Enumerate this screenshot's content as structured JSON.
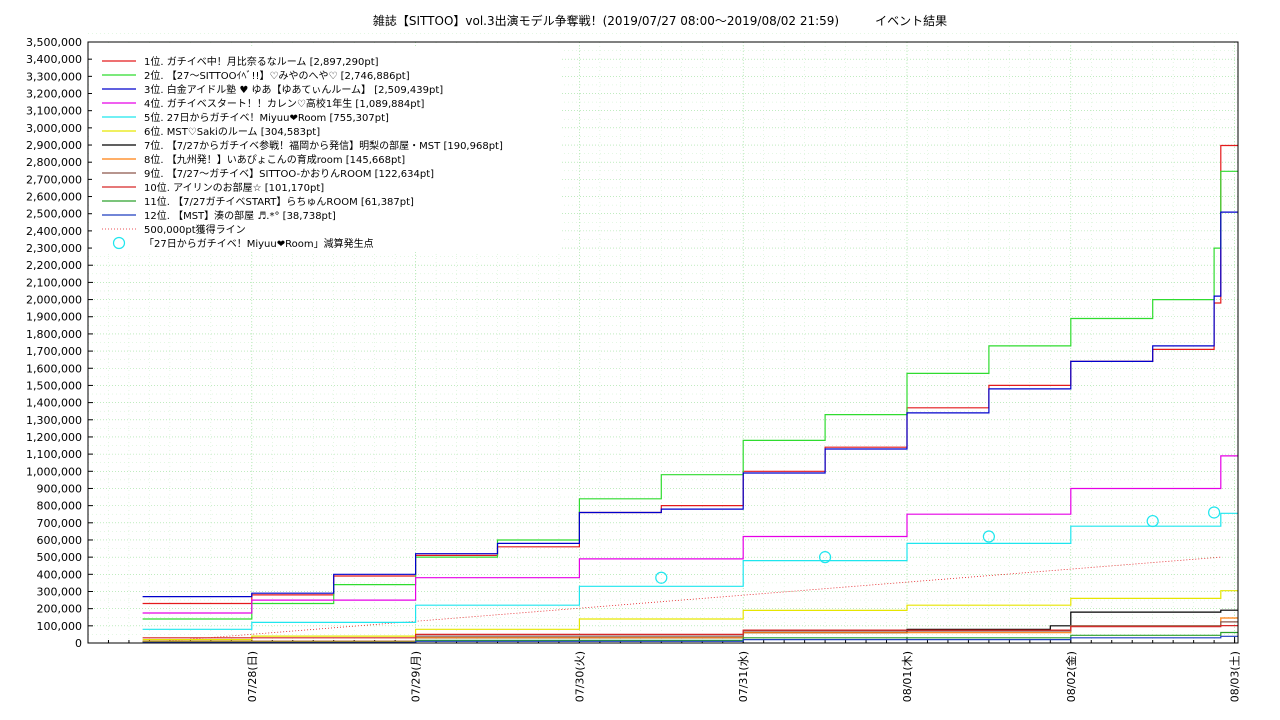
{
  "chart_data": {
    "type": "line",
    "title": "雑誌【SITTOO】vol.3出演モデル争奪戦！(2019/07/27 08:00〜2019/08/02 21:59)　　　イベント結果",
    "xlabel": "",
    "ylabel": "",
    "x_domain": [
      "2019-07-27T00:00",
      "2019-08-03T00:30"
    ],
    "ylim": [
      0,
      3500000
    ],
    "y_ticks": [
      "0",
      "100,000",
      "200,000",
      "300,000",
      "400,000",
      "500,000",
      "600,000",
      "700,000",
      "800,000",
      "900,000",
      "1,000,000",
      "1,100,000",
      "1,200,000",
      "1,300,000",
      "1,400,000",
      "1,500,000",
      "1,600,000",
      "1,700,000",
      "1,800,000",
      "1,900,000",
      "2,000,000",
      "2,100,000",
      "2,200,000",
      "2,300,000",
      "2,400,000",
      "2,500,000",
      "2,600,000",
      "2,700,000",
      "2,800,000",
      "2,900,000",
      "3,000,000",
      "3,100,000",
      "3,200,000",
      "3,300,000",
      "3,400,000",
      "3,500,000"
    ],
    "x_ticks": [
      {
        "x": "2019-07-28",
        "label": "07/28(日)"
      },
      {
        "x": "2019-07-29",
        "label": "07/29(月)"
      },
      {
        "x": "2019-07-30",
        "label": "07/30(火)"
      },
      {
        "x": "2019-07-31",
        "label": "07/31(水)"
      },
      {
        "x": "2019-08-01",
        "label": "08/01(木)"
      },
      {
        "x": "2019-08-02",
        "label": "08/02(金)"
      },
      {
        "x": "2019-08-03",
        "label": "08/03(土)"
      }
    ],
    "grid": true,
    "legend_position": "top-left",
    "series": [
      {
        "name": "1位. ガチイベ中！月比奈るなルーム [2,897,290pt]",
        "color": "#e41a1c",
        "x": [
          "2019-07-27T08:00",
          "2019-07-28T00:00",
          "2019-07-28T12:00",
          "2019-07-29T00:00",
          "2019-07-29T12:00",
          "2019-07-30T00:00",
          "2019-07-30T12:00",
          "2019-07-31T00:00",
          "2019-07-31T12:00",
          "2019-08-01T00:00",
          "2019-08-01T12:00",
          "2019-08-02T00:00",
          "2019-08-02T12:00",
          "2019-08-02T21:00",
          "2019-08-02T21:59"
        ],
        "y": [
          230000,
          280000,
          390000,
          510000,
          560000,
          760000,
          800000,
          1000000,
          1140000,
          1370000,
          1500000,
          1640000,
          1710000,
          1980000,
          2897290
        ]
      },
      {
        "name": "2位. 【27〜SITTOOｲﾍﾞ!!】♡みやのへや♡ [2,746,886pt]",
        "color": "#2fdc2f",
        "x": [
          "2019-07-27T08:00",
          "2019-07-28T00:00",
          "2019-07-28T12:00",
          "2019-07-29T00:00",
          "2019-07-29T12:00",
          "2019-07-30T00:00",
          "2019-07-30T12:00",
          "2019-07-31T00:00",
          "2019-07-31T12:00",
          "2019-08-01T00:00",
          "2019-08-01T12:00",
          "2019-08-02T00:00",
          "2019-08-02T12:00",
          "2019-08-02T21:00",
          "2019-08-02T21:59"
        ],
        "y": [
          140000,
          230000,
          340000,
          500000,
          600000,
          840000,
          980000,
          1180000,
          1330000,
          1570000,
          1730000,
          1890000,
          2000000,
          2300000,
          2746886
        ]
      },
      {
        "name": "3位. 白金アイドル塾 ♥ ゆあ【ゆあてぃんルーム】 [2,509,439pt]",
        "color": "#0000cc",
        "x": [
          "2019-07-27T08:00",
          "2019-07-28T00:00",
          "2019-07-28T12:00",
          "2019-07-29T00:00",
          "2019-07-29T12:00",
          "2019-07-30T00:00",
          "2019-07-30T12:00",
          "2019-07-31T00:00",
          "2019-07-31T12:00",
          "2019-08-01T00:00",
          "2019-08-01T12:00",
          "2019-08-02T00:00",
          "2019-08-02T12:00",
          "2019-08-02T21:00",
          "2019-08-02T21:59"
        ],
        "y": [
          270000,
          290000,
          400000,
          520000,
          580000,
          760000,
          780000,
          990000,
          1130000,
          1340000,
          1480000,
          1640000,
          1730000,
          2020000,
          2509439
        ]
      },
      {
        "name": "4位. ガチイベスタート！！カレン♡高校1年生 [1,089,884pt]",
        "color": "#e600e6",
        "x": [
          "2019-07-27T08:00",
          "2019-07-28T00:00",
          "2019-07-29T00:00",
          "2019-07-30T00:00",
          "2019-07-31T00:00",
          "2019-08-01T00:00",
          "2019-08-02T00:00",
          "2019-08-02T21:59"
        ],
        "y": [
          175000,
          250000,
          380000,
          490000,
          620000,
          750000,
          900000,
          1089884
        ]
      },
      {
        "name": "5位. 27日からガチイベ！Miyuu❤Room [755,307pt]",
        "color": "#1ee6ee",
        "x": [
          "2019-07-27T08:00",
          "2019-07-28T00:00",
          "2019-07-29T00:00",
          "2019-07-30T00:00",
          "2019-07-31T00:00",
          "2019-08-01T00:00",
          "2019-08-02T00:00",
          "2019-08-02T21:59"
        ],
        "y": [
          80000,
          120000,
          220000,
          330000,
          480000,
          580000,
          680000,
          755307
        ]
      },
      {
        "name": "6位. MST♡Sakiのルーム [304,583pt]",
        "color": "#e6e600",
        "x": [
          "2019-07-27T08:00",
          "2019-07-28T00:00",
          "2019-07-29T00:00",
          "2019-07-30T00:00",
          "2019-07-31T00:00",
          "2019-08-01T00:00",
          "2019-08-02T00:00",
          "2019-08-02T21:59"
        ],
        "y": [
          20000,
          40000,
          80000,
          140000,
          190000,
          220000,
          260000,
          304583
        ]
      },
      {
        "name": "7位. 【7/27からガチイベ参戦！福岡から発信】明梨の部屋・MST [190,968pt]",
        "color": "#000000",
        "x": [
          "2019-07-27T08:00",
          "2019-07-29T00:00",
          "2019-07-31T00:00",
          "2019-08-01T00:00",
          "2019-08-01T21:00",
          "2019-08-02T00:00",
          "2019-08-02T21:59"
        ],
        "y": [
          10000,
          30000,
          60000,
          80000,
          100000,
          180000,
          190968
        ]
      },
      {
        "name": "8位. 【九州発！】いあぴょこんの育成room [145,668pt]",
        "color": "#ff7f0e",
        "x": [
          "2019-07-27T08:00",
          "2019-07-29T00:00",
          "2019-07-31T00:00",
          "2019-08-02T00:00",
          "2019-08-02T21:59"
        ],
        "y": [
          10000,
          30000,
          60000,
          100000,
          145668
        ]
      },
      {
        "name": "9位. 【7/27〜ガチイベ】SITTOO-かおりんROOM [122,634pt]",
        "color": "#8c564b",
        "x": [
          "2019-07-27T08:00",
          "2019-07-29T00:00",
          "2019-07-31T00:00",
          "2019-08-02T00:00",
          "2019-08-02T21:59"
        ],
        "y": [
          5000,
          40000,
          70000,
          100000,
          122634
        ]
      },
      {
        "name": "10位. アイリンのお部屋☆ [101,170pt]",
        "color": "#d62728",
        "x": [
          "2019-07-27T08:00",
          "2019-07-29T00:00",
          "2019-07-31T00:00",
          "2019-08-02T00:00",
          "2019-08-02T21:59"
        ],
        "y": [
          30000,
          50000,
          75000,
          95000,
          101170
        ]
      },
      {
        "name": "11位. 【7/27ガチイベSTART】らちゅんROOM [61,387pt]",
        "color": "#2ca02c",
        "x": [
          "2019-07-27T08:00",
          "2019-07-29T00:00",
          "2019-07-31T00:00",
          "2019-08-02T00:00",
          "2019-08-02T21:59"
        ],
        "y": [
          5000,
          15000,
          30000,
          45000,
          61387
        ]
      },
      {
        "name": "12位. 【MST】湊の部屋 ♬.*° [38,738pt]",
        "color": "#1f3fbf",
        "x": [
          "2019-07-27T08:00",
          "2019-07-29T00:00",
          "2019-07-31T00:00",
          "2019-08-02T00:00",
          "2019-08-02T21:59"
        ],
        "y": [
          3000,
          10000,
          20000,
          30000,
          38738
        ]
      }
    ],
    "reference_line": {
      "name": "500,000pt獲得ライン",
      "color": "#e31a1c",
      "x": [
        "2019-07-27T08:00",
        "2019-08-02T21:59"
      ],
      "y": [
        0,
        500000
      ]
    },
    "markers": {
      "name": "「27日からガチイベ！Miyuu❤Room」減算発生点",
      "color": "#1ee6ee",
      "x": [
        "2019-07-30T12:00",
        "2019-07-31T12:00",
        "2019-08-01T12:00",
        "2019-08-02T12:00",
        "2019-08-02T21:00"
      ],
      "y": [
        380000,
        500000,
        620000,
        710000,
        760000
      ]
    }
  }
}
